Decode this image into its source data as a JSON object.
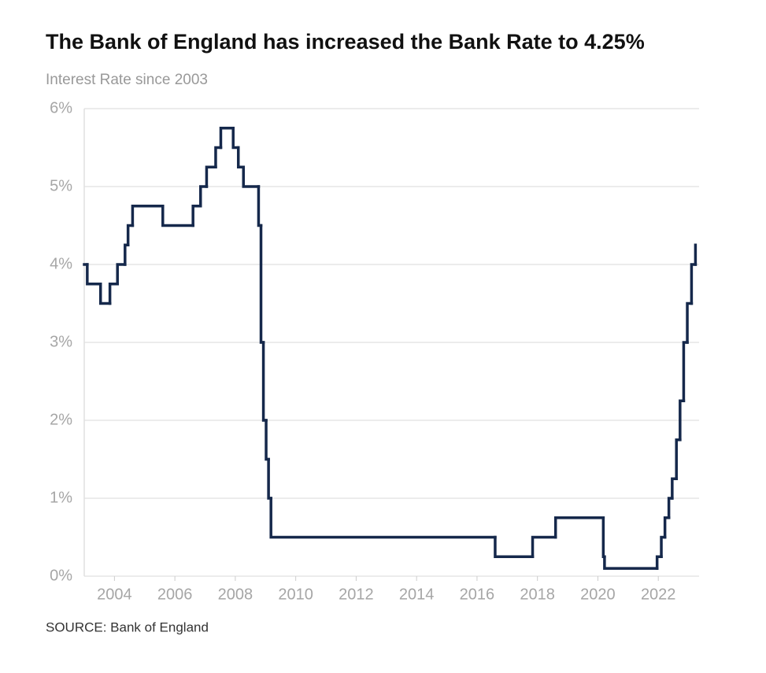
{
  "chart_data": {
    "type": "step",
    "title": "The Bank of England has increased the Bank Rate to 4.25%",
    "subtitle": "Interest Rate since 2003",
    "source": "SOURCE: Bank of England",
    "series": [
      {
        "color": "#15284b",
        "x": [
          2003.0,
          2003.1,
          2003.54,
          2003.85,
          2004.1,
          2004.35,
          2004.45,
          2004.6,
          2005.6,
          2006.6,
          2006.85,
          2007.05,
          2007.35,
          2007.52,
          2007.93,
          2008.1,
          2008.27,
          2008.77,
          2008.85,
          2008.93,
          2009.02,
          2009.1,
          2009.18,
          2016.6,
          2017.84,
          2018.6,
          2020.18,
          2020.22,
          2021.96,
          2022.1,
          2022.22,
          2022.35,
          2022.46,
          2022.6,
          2022.72,
          2022.84,
          2022.96,
          2023.1,
          2023.23
        ],
        "values": [
          4.0,
          3.75,
          3.5,
          3.75,
          4.0,
          4.25,
          4.5,
          4.75,
          4.5,
          4.75,
          5.0,
          5.25,
          5.5,
          5.75,
          5.5,
          5.25,
          5.0,
          4.5,
          3.0,
          2.0,
          1.5,
          1.0,
          0.5,
          0.25,
          0.5,
          0.75,
          0.25,
          0.1,
          0.25,
          0.5,
          0.75,
          1.0,
          1.25,
          1.75,
          2.25,
          3.0,
          3.5,
          4.0,
          4.25
        ]
      }
    ],
    "xlim": [
      2003.0,
      2023.35
    ],
    "xticks": [
      2004,
      2006,
      2008,
      2010,
      2012,
      2014,
      2016,
      2018,
      2020,
      2022
    ],
    "ylim": [
      0,
      6
    ],
    "yticks": [
      {
        "value": 0,
        "label": "0%"
      },
      {
        "value": 1,
        "label": "1%"
      },
      {
        "value": 2,
        "label": "2%"
      },
      {
        "value": 3,
        "label": "3%"
      },
      {
        "value": 4,
        "label": "4%"
      },
      {
        "value": 5,
        "label": "5%"
      },
      {
        "value": 6,
        "label": "6%"
      }
    ],
    "grid": true
  }
}
